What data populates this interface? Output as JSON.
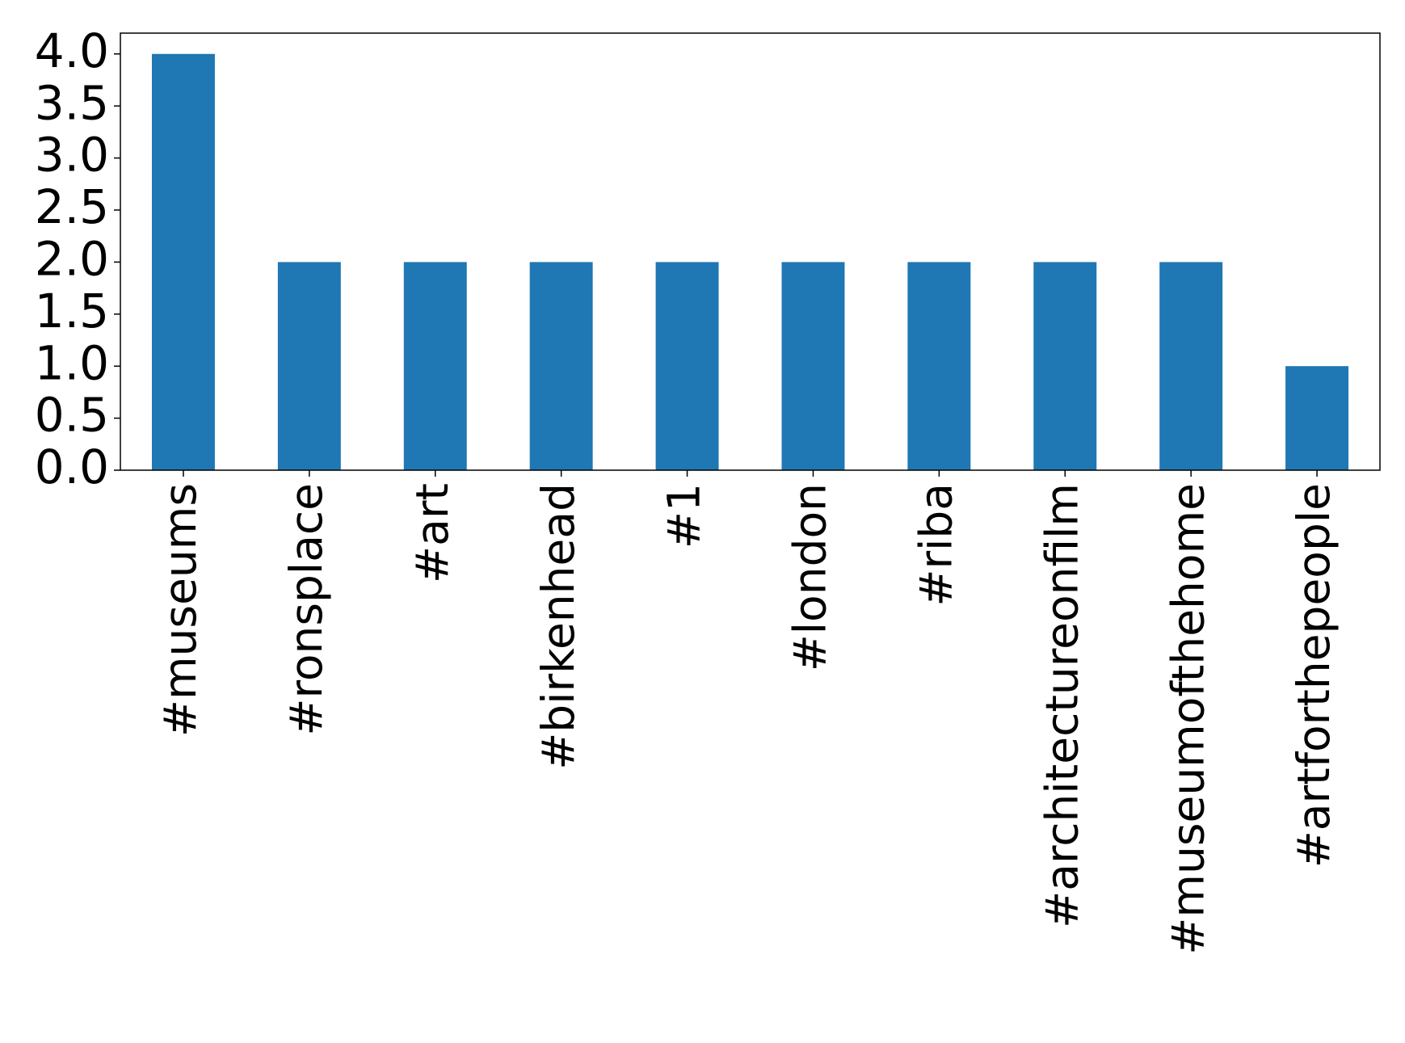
{
  "chart_data": {
    "type": "bar",
    "categories": [
      "#museums",
      "#ronsplace",
      "#art",
      "#birkenhead",
      "#1",
      "#london",
      "#riba",
      "#architectureonfilm",
      "#museumofthehome",
      "#artforthepeople"
    ],
    "values": [
      4,
      2,
      2,
      2,
      2,
      2,
      2,
      2,
      2,
      1
    ],
    "color": "#1f77b4",
    "ylim": [
      0,
      4.2
    ],
    "yticks": [
      {
        "value": 0,
        "label": "0.0"
      },
      0.5,
      {
        "value": 1,
        "label": "1.0"
      },
      1.5,
      {
        "value": 2,
        "label": "2.0"
      },
      2.5,
      {
        "value": 3,
        "label": "3.0"
      },
      3.5,
      {
        "value": 4,
        "label": "4.0"
      }
    ],
    "grid": false
  }
}
